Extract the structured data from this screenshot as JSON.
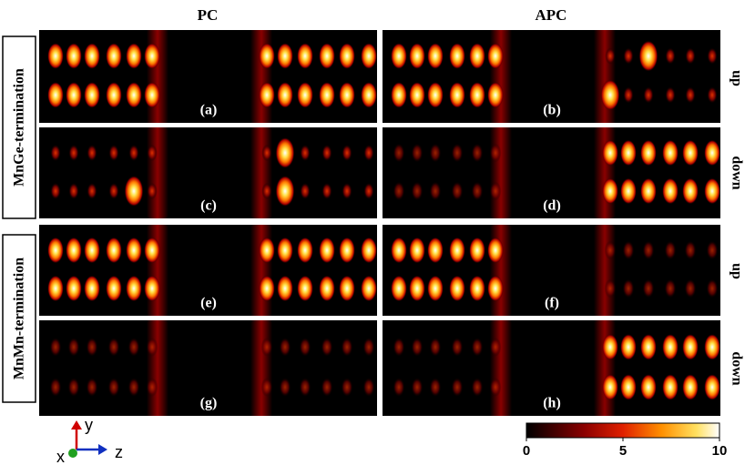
{
  "columns": [
    "PC",
    "APC"
  ],
  "rows": [
    "MnGe-termination",
    "MnMn-termination"
  ],
  "spins": [
    "up",
    "down",
    "up",
    "down"
  ],
  "panels": [
    "(a)",
    "(b)",
    "(c)",
    "(d)",
    "(e)",
    "(f)",
    "(g)",
    "(h)"
  ],
  "axes": {
    "y": "y",
    "x": "x",
    "z": "z"
  },
  "colorbar": {
    "range": [
      0,
      10
    ],
    "ticks": [
      0,
      5,
      10
    ]
  }
}
